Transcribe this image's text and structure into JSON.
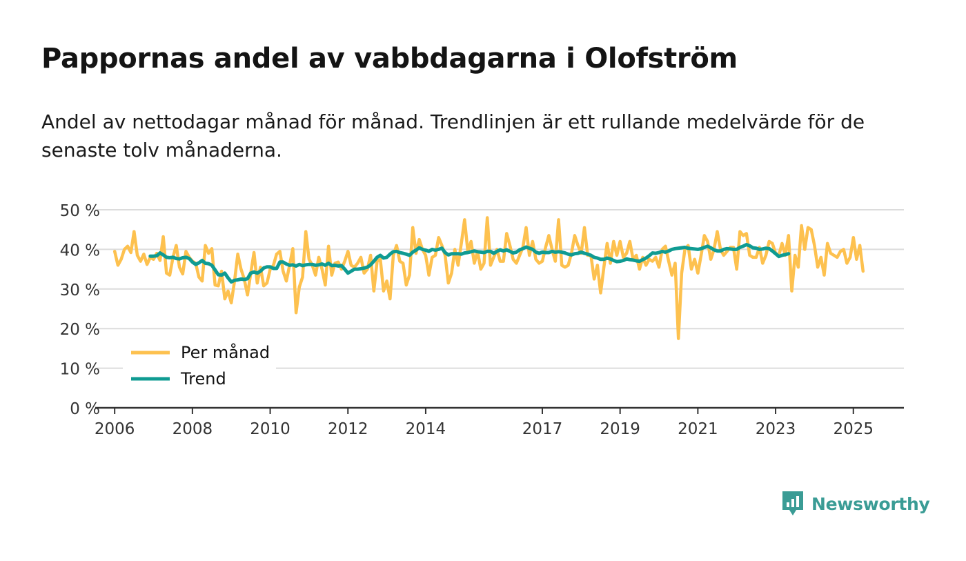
{
  "title": "Pappornas andel av vabbdagarna i Olofström",
  "subtitle": "Andel av nettodagar månad för månad. Trendlinjen är ett rullande medelvärde för de senaste tolv månaderna.",
  "brand": {
    "name": "Newsworthy",
    "icon": "newsworthy-logo-icon",
    "color": "#3a9c95"
  },
  "colors": {
    "monthly": "#fdc14f",
    "trend": "#0f9b92",
    "grid": "#dcdcdc",
    "axis": "#333333",
    "text": "#333333"
  },
  "chart_data": {
    "type": "line",
    "title": "Pappornas andel av vabbdagarna i Olofström",
    "xlabel": "",
    "ylabel": "",
    "ylim": [
      0,
      50
    ],
    "xlim": [
      2005.5,
      2026.3
    ],
    "y_ticks": [
      "0 %",
      "10 %",
      "20 %",
      "30 %",
      "40 %",
      "50 %"
    ],
    "y_tick_values": [
      0,
      10,
      20,
      30,
      40,
      50
    ],
    "x_ticks": [
      "2006",
      "2008",
      "2010",
      "2012",
      "2014",
      "2017",
      "2019",
      "2021",
      "2023",
      "2025"
    ],
    "x_tick_values": [
      2006,
      2008,
      2010,
      2012,
      2014,
      2017,
      2019,
      2021,
      2023,
      2025
    ],
    "grid": true,
    "legend": {
      "position": "bottom-left",
      "entries": [
        "Per månad",
        "Trend"
      ]
    },
    "series": [
      {
        "name": "Per månad",
        "start": 2006.0,
        "step_months": 1,
        "values": [
          39.5,
          36.0,
          37.5,
          40.0,
          40.8,
          39.2,
          44.5,
          38.5,
          37.0,
          38.8,
          36.2,
          38.0,
          37.5,
          39.0,
          37.2,
          43.2,
          34.0,
          33.5,
          38.0,
          41.0,
          35.5,
          33.8,
          39.5,
          38.0,
          37.0,
          36.5,
          33.0,
          32.0,
          41.0,
          39.0,
          40.2,
          31.0,
          30.8,
          34.5,
          27.5,
          29.5,
          26.5,
          32.0,
          38.8,
          35.0,
          32.5,
          28.5,
          34.0,
          39.2,
          31.5,
          35.5,
          30.8,
          31.5,
          35.0,
          36.0,
          38.8,
          39.5,
          34.5,
          32.0,
          36.0,
          40.2,
          24.0,
          30.5,
          33.0,
          44.5,
          37.5,
          36.0,
          33.5,
          38.0,
          35.0,
          31.0,
          40.8,
          33.5,
          36.5,
          36.8,
          35.0,
          37.0,
          39.5,
          36.0,
          35.5,
          36.5,
          38.0,
          34.0,
          35.0,
          38.5,
          29.5,
          37.0,
          37.5,
          29.5,
          32.0,
          27.5,
          38.5,
          41.0,
          37.0,
          36.5,
          31.0,
          33.5,
          45.5,
          39.0,
          42.5,
          40.0,
          38.5,
          33.5,
          38.0,
          38.5,
          43.0,
          41.0,
          38.5,
          31.5,
          34.0,
          40.0,
          36.0,
          41.5,
          47.5,
          39.5,
          42.0,
          36.5,
          39.5,
          35.0,
          36.5,
          48.0,
          36.0,
          38.0,
          40.0,
          37.0,
          37.0,
          44.0,
          41.0,
          37.5,
          36.5,
          38.5,
          40.5,
          45.5,
          38.5,
          42.0,
          37.5,
          36.5,
          37.0,
          40.5,
          43.5,
          40.0,
          37.0,
          47.5,
          36.0,
          35.5,
          36.0,
          39.0,
          43.5,
          41.0,
          39.0,
          45.5,
          38.5,
          38.5,
          32.5,
          36.0,
          29.0,
          35.5,
          41.5,
          36.5,
          42.0,
          38.5,
          42.0,
          38.0,
          39.0,
          42.0,
          37.5,
          38.5,
          35.0,
          38.0,
          36.0,
          37.5,
          37.0,
          38.0,
          35.5,
          40.0,
          40.8,
          37.0,
          33.5,
          36.5,
          17.5,
          34.0,
          40.0,
          41.0,
          35.0,
          37.5,
          34.0,
          38.5,
          43.5,
          42.0,
          37.5,
          40.0,
          44.5,
          40.0,
          38.5,
          39.5,
          40.5,
          40.5,
          35.0,
          44.5,
          43.5,
          44.0,
          38.5,
          38.0,
          38.0,
          40.5,
          36.5,
          38.5,
          42.0,
          41.5,
          39.0,
          38.5,
          41.5,
          38.5,
          43.5,
          29.5,
          38.5,
          35.5,
          46.0,
          40.0,
          45.5,
          45.0,
          41.0,
          35.5,
          38.0,
          33.5,
          41.5,
          39.0,
          38.5,
          38.0,
          39.5,
          40.0,
          36.5,
          38.0,
          43.0,
          37.5,
          41.0,
          34.5
        ]
      },
      {
        "name": "Trend",
        "start": 2006.9167,
        "step_months": 1,
        "values": [
          38.3,
          38.3,
          38.4,
          39.1,
          38.6,
          38.0,
          37.9,
          38.0,
          37.7,
          37.6,
          37.9,
          38.0,
          37.7,
          36.8,
          36.2,
          36.6,
          37.2,
          36.5,
          36.4,
          36.0,
          34.8,
          33.6,
          33.5,
          34.0,
          32.8,
          31.8,
          32.2,
          32.3,
          32.5,
          32.4,
          32.6,
          34.0,
          34.3,
          34.0,
          34.5,
          35.3,
          35.6,
          35.6,
          35.2,
          35.2,
          36.8,
          36.8,
          36.3,
          36.0,
          36.1,
          35.8,
          36.2,
          35.9,
          36.1,
          36.2,
          36.2,
          36.0,
          36.1,
          36.3,
          36.0,
          36.5,
          35.9,
          36.0,
          35.8,
          35.9,
          35.0,
          34.0,
          34.5,
          35.0,
          35.0,
          35.1,
          35.3,
          35.5,
          36.1,
          37.0,
          38.0,
          38.5,
          37.8,
          38.0,
          38.8,
          39.4,
          39.5,
          39.2,
          39.0,
          38.8,
          38.5,
          39.3,
          39.8,
          40.4,
          40.0,
          39.8,
          39.5,
          40.0,
          39.8,
          40.0,
          40.3,
          39.2,
          38.6,
          38.9,
          38.9,
          38.9,
          38.8,
          39.1,
          39.2,
          39.4,
          39.6,
          39.4,
          39.3,
          39.2,
          39.5,
          39.5,
          39.0,
          39.5,
          39.9,
          39.6,
          39.9,
          39.5,
          39.1,
          39.3,
          39.9,
          40.2,
          40.6,
          40.3,
          40.0,
          39.3,
          39.0,
          39.3,
          39.2,
          39.2,
          39.5,
          39.3,
          39.4,
          39.3,
          39.1,
          38.8,
          38.6,
          38.9,
          39.0,
          39.3,
          39.0,
          38.8,
          38.5,
          38.0,
          37.8,
          37.5,
          37.5,
          37.8,
          37.6,
          37.2,
          36.9,
          37.0,
          37.2,
          37.6,
          37.4,
          37.3,
          37.1,
          37.0,
          37.4,
          37.8,
          38.4,
          39.1,
          39.0,
          39.2,
          39.5,
          39.3,
          39.6,
          40.0,
          40.2,
          40.3,
          40.4,
          40.5,
          40.3,
          40.2,
          40.1,
          40.0,
          40.2,
          40.5,
          40.8,
          40.4,
          39.9,
          39.6,
          39.6,
          40.0,
          40.2,
          40.1,
          40.0,
          40.0,
          40.5,
          40.8,
          41.2,
          40.9,
          40.4,
          40.3,
          40.0,
          40.1,
          40.3,
          40.2,
          39.6,
          38.9,
          38.2,
          38.5,
          38.7,
          38.9
        ]
      }
    ]
  }
}
